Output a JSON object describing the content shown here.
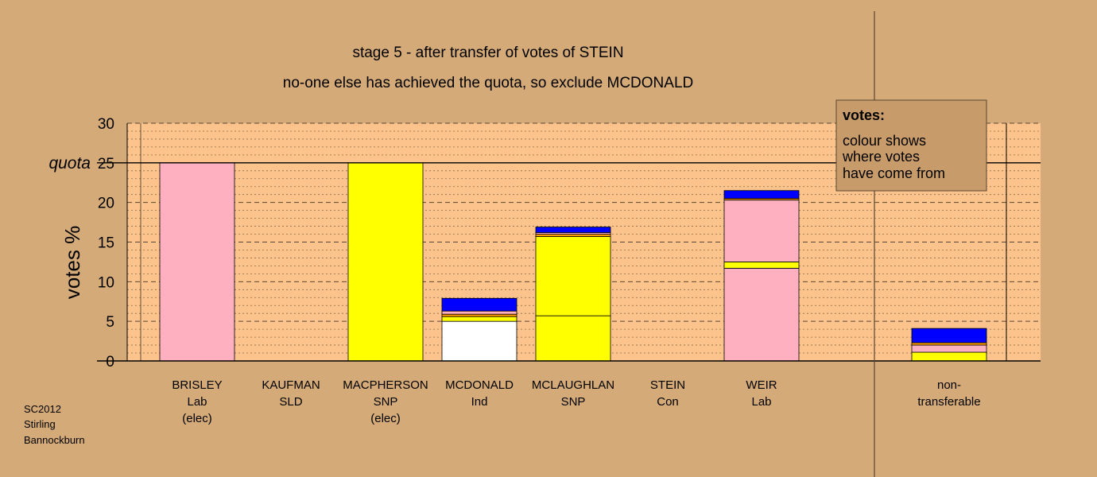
{
  "colors": {
    "background": "#d4aa78",
    "plot_area": "#fcc48c",
    "Lab": "#ffb0c0",
    "SNP": "#ffff00",
    "Ind": "#ffffff",
    "SLD": "#ff9900",
    "Con": "#0000ff",
    "legend_bg": "#c89c6a"
  },
  "chart_data": {
    "type": "bar",
    "stacked": true,
    "title": "stage 5 - after transfer of votes of STEIN",
    "subtitle": "no-one else has achieved the quota, so exclude MCDONALD",
    "ylabel": "votes %",
    "ylim": [
      0,
      30
    ],
    "yticks": [
      "0",
      "5",
      "10",
      "15",
      "20",
      "25",
      "30"
    ],
    "quota": {
      "value": 25,
      "label": "quota"
    },
    "grid": "major dashed every 5, minor dotted every 1",
    "legend": {
      "title": "votes:",
      "lines": [
        "colour shows",
        "where votes",
        "have come from"
      ],
      "placement": "top-right"
    },
    "candidates": [
      {
        "name": "BRISLEY",
        "party": "Lab",
        "status": "(elec)",
        "segments": [
          {
            "source": "Lab",
            "value": 25.0
          }
        ]
      },
      {
        "name": "KAUFMAN",
        "party": "SLD",
        "status": "",
        "segments": []
      },
      {
        "name": "MACPHERSON",
        "party": "SNP",
        "status": "(elec)",
        "segments": [
          {
            "source": "SNP",
            "value": 25.0
          }
        ]
      },
      {
        "name": "MCDONALD",
        "party": "Ind",
        "status": "",
        "segments": [
          {
            "source": "Ind",
            "value": 5.0
          },
          {
            "source": "SNP",
            "value": 0.6
          },
          {
            "source": "SLD",
            "value": 0.3
          },
          {
            "source": "Lab",
            "value": 0.4
          },
          {
            "source": "Con",
            "value": 1.6
          }
        ]
      },
      {
        "name": "MCLAUGHLAN",
        "party": "SNP",
        "status": "",
        "segments": [
          {
            "source": "SNP",
            "value": 5.7
          },
          {
            "source": "SNP",
            "value": 10.0
          },
          {
            "source": "SLD",
            "value": 0.3
          },
          {
            "source": "Lab",
            "value": 0.2
          },
          {
            "source": "Con",
            "value": 0.7
          }
        ]
      },
      {
        "name": "STEIN",
        "party": "Con",
        "status": "",
        "segments": []
      },
      {
        "name": "WEIR",
        "party": "Lab",
        "status": "",
        "segments": [
          {
            "source": "Lab",
            "value": 11.7
          },
          {
            "source": "SNP",
            "value": 0.8
          },
          {
            "source": "Lab",
            "value": 7.8
          },
          {
            "source": "SLD",
            "value": 0.2
          },
          {
            "source": "Con",
            "value": 1.0
          }
        ]
      }
    ],
    "nontransferable": {
      "name": "non-",
      "line2": "transferable",
      "segments": [
        {
          "source": "SNP",
          "value": 1.1
        },
        {
          "source": "Lab",
          "value": 0.9
        },
        {
          "source": "SLD",
          "value": 0.3
        },
        {
          "source": "Con",
          "value": 1.8
        }
      ]
    }
  },
  "footer": [
    "SC2012",
    "Stirling",
    "Bannockburn"
  ]
}
